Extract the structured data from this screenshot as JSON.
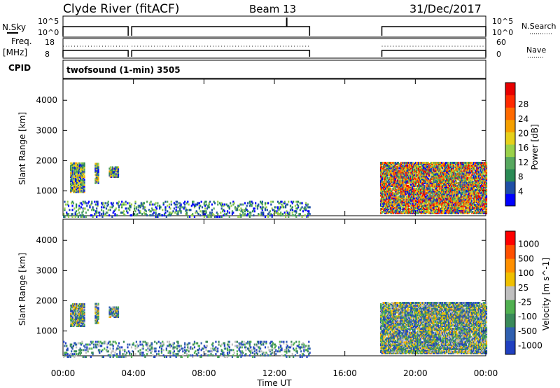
{
  "header": {
    "station": "Clyde River (fitACF)",
    "beam": "Beam 13",
    "date": "31/Dec/2017"
  },
  "panels": {
    "nsky_label": "N.Sky",
    "nsky_ticks": [
      "10^5",
      "10^0"
    ],
    "nsearch_label": "N.Search",
    "nsearch_ticks": [
      "10^5",
      "10^0"
    ],
    "freq_label": "Freq.",
    "freq_unit": "[MHz]",
    "freq_ticks": [
      "18",
      "8"
    ],
    "nave_label": "Nave",
    "nave_ticks": [
      "60",
      "0"
    ],
    "cpid_label": "CPID",
    "cpid_value": "twofsound (1-min) 3505"
  },
  "chart_data": [
    {
      "type": "heatmap",
      "title": "",
      "xlabel": "",
      "ylabel": "Slant Range [km]",
      "xlim": [
        0,
        24
      ],
      "ylim": [
        180,
        4700
      ],
      "yticks": [
        "1000",
        "2000",
        "3000",
        "4000"
      ],
      "colorbar": {
        "label": "Power [dB]",
        "ticks": [
          "4",
          "8",
          "12",
          "16",
          "20",
          "24",
          "28"
        ],
        "colors": [
          "#0000ff",
          "#1f4fa6",
          "#2a8a55",
          "#57a85f",
          "#9ad14a",
          "#e6d01a",
          "#f5a000",
          "#ff6a00",
          "#ff2a00",
          "#e80000"
        ]
      },
      "scatter_regions": [
        {
          "t": [
            0.4,
            1.2
          ],
          "range": [
            1000,
            1950
          ],
          "level": "mixed",
          "peak": 24
        },
        {
          "t": [
            1.8,
            2.0
          ],
          "range": [
            1300,
            1950
          ],
          "level": "mid",
          "peak": 12
        },
        {
          "t": [
            2.6,
            3.1
          ],
          "range": [
            1500,
            1850
          ],
          "level": "mid",
          "peak": 20
        },
        {
          "t": [
            18.0,
            24.0
          ],
          "range": [
            300,
            2000
          ],
          "level": "high",
          "peak": 30
        },
        {
          "t": [
            0.0,
            14.0
          ],
          "range": [
            180,
            700
          ],
          "level": "low",
          "peak": 12
        }
      ]
    },
    {
      "type": "heatmap",
      "title": "",
      "xlabel": "Time UT",
      "ylabel": "Slant Range [km]",
      "xlim": [
        0,
        24
      ],
      "ylim": [
        180,
        4700
      ],
      "xticks": [
        "00:00",
        "04:00",
        "08:00",
        "12:00",
        "16:00",
        "20:00",
        "00:00"
      ],
      "yticks": [
        "1000",
        "2000",
        "3000",
        "4000"
      ],
      "colorbar": {
        "label": "Velocity [m s^-1]",
        "ticks": [
          "1000",
          "500",
          "100",
          "25",
          "-25",
          "-100",
          "-500",
          "-1000"
        ],
        "colors": [
          "#2040c0",
          "#3060b0",
          "#3a8a5a",
          "#50b050",
          "#bfbfbf",
          "#f0c000",
          "#ff9000",
          "#ff5000",
          "#ff0000"
        ]
      },
      "scatter_regions": [
        {
          "t": [
            0.4,
            1.2
          ],
          "range": [
            1200,
            1950
          ],
          "level": "positive",
          "peak": 500
        },
        {
          "t": [
            1.8,
            2.0
          ],
          "range": [
            1300,
            1950
          ],
          "level": "positive",
          "peak": 500
        },
        {
          "t": [
            2.6,
            3.1
          ],
          "range": [
            1500,
            1850
          ],
          "level": "mixed",
          "peak": -100
        },
        {
          "t": [
            18.0,
            24.0
          ],
          "range": [
            300,
            2000
          ],
          "level": "mixed",
          "peak": -500
        },
        {
          "t": [
            0.0,
            14.0
          ],
          "range": [
            180,
            700
          ],
          "level": "low",
          "peak": 25
        }
      ]
    }
  ]
}
